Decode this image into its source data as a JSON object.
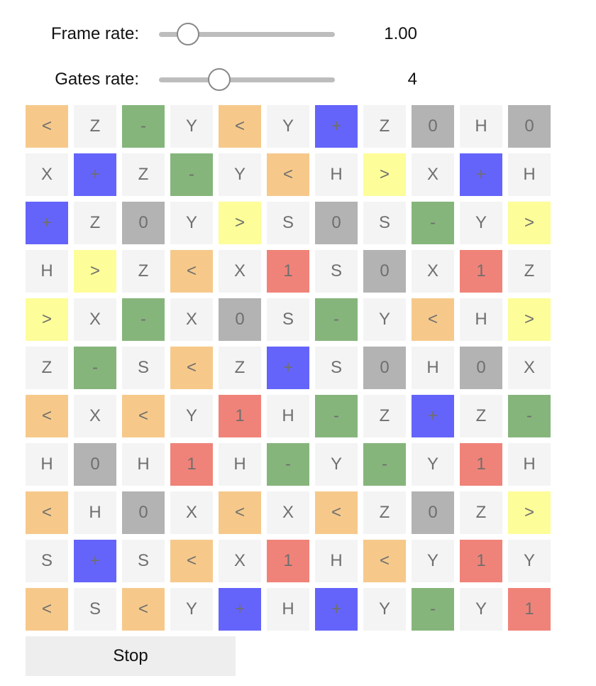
{
  "controls": {
    "frame_rate": {
      "label": "Frame rate:",
      "value": "1.00",
      "level": 0.16
    },
    "gates_rate": {
      "label": "Gates rate:",
      "value": "4",
      "level": 0.34
    }
  },
  "colors": {
    "<": "#f6c98b",
    ">": "#fdfd99",
    "-": "#86b57c",
    "+": "#6464fa",
    "0": "#b3b3b3",
    "1": "#f08379",
    "default": "#f4f4f4"
  },
  "grid": [
    [
      "<",
      "Z",
      "-",
      "Y",
      "<",
      "Y",
      "+",
      "Z",
      "0",
      "H",
      "0"
    ],
    [
      "X",
      "+",
      "Z",
      "-",
      "Y",
      "<",
      "H",
      ">",
      "X",
      "+",
      "H"
    ],
    [
      "+",
      "Z",
      "0",
      "Y",
      ">",
      "S",
      "0",
      "S",
      "-",
      "Y",
      ">"
    ],
    [
      "H",
      ">",
      "Z",
      "<",
      "X",
      "1",
      "S",
      "0",
      "X",
      "1",
      "Z"
    ],
    [
      ">",
      "X",
      "-",
      "X",
      "0",
      "S",
      "-",
      "Y",
      "<",
      "H",
      ">"
    ],
    [
      "Z",
      "-",
      "S",
      "<",
      "Z",
      "+",
      "S",
      "0",
      "H",
      "0",
      "X"
    ],
    [
      "<",
      "X",
      "<",
      "Y",
      "1",
      "H",
      "-",
      "Z",
      "+",
      "Z",
      "-"
    ],
    [
      "H",
      "0",
      "H",
      "1",
      "H",
      "-",
      "Y",
      "-",
      "Y",
      "1",
      "H"
    ],
    [
      "<",
      "H",
      "0",
      "X",
      "<",
      "X",
      "<",
      "Z",
      "0",
      "Z",
      ">"
    ],
    [
      "S",
      "+",
      "S",
      "<",
      "X",
      "1",
      "H",
      "<",
      "Y",
      "1",
      "Y"
    ],
    [
      "<",
      "S",
      "<",
      "Y",
      "+",
      "H",
      "+",
      "Y",
      "-",
      "Y",
      "1"
    ]
  ],
  "stop_button": {
    "label": "Stop"
  }
}
